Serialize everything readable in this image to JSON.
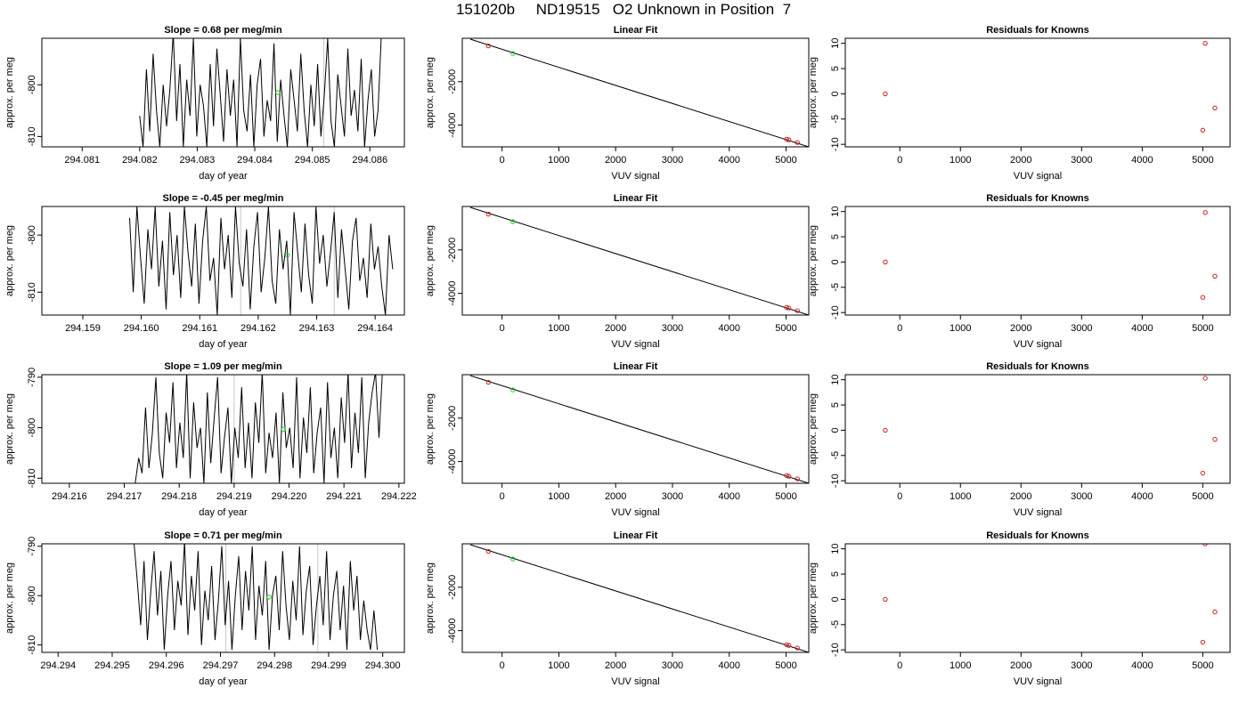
{
  "figure": {
    "title": "151020b     ND19515   O2 Unknown in Position  7"
  },
  "chart_data": [
    {
      "type": "line",
      "title": "Slope =  0.68  per meg/min",
      "xlabel": "day of year",
      "ylabel": "approx. per meg",
      "xlim": [
        294.0803,
        294.0866
      ],
      "ylim": [
        -812,
        -791
      ],
      "xticks": [
        294.081,
        294.082,
        294.083,
        294.084,
        294.085,
        294.086
      ],
      "xtick_labels": [
        "294.081",
        "294.082",
        "294.083",
        "294.084",
        "294.085",
        "294.086"
      ],
      "yticks": [
        -800,
        -810
      ],
      "ytick_labels": [
        "-800",
        "-810"
      ],
      "x_start": 294.082,
      "x_end": 294.0862,
      "vlines": [
        294.0852
      ],
      "mean_point": {
        "x": 294.0844,
        "y": -801.5
      },
      "series": [
        {
          "values": [
            -806,
            -812,
            -797,
            -809,
            -794,
            -805,
            -812,
            -800,
            -808,
            -801,
            -790,
            -807,
            -796,
            -812,
            -799,
            -806,
            -791,
            -810,
            -800,
            -804,
            -812,
            -796,
            -808,
            -793,
            -802,
            -811,
            -797,
            -806,
            -799,
            -812,
            -791,
            -805,
            -809,
            -798,
            -812,
            -800,
            -795,
            -810,
            -803,
            -807,
            -792,
            -811,
            -799,
            -806,
            -812,
            -797,
            -803,
            -809,
            -794,
            -805,
            -812,
            -800,
            -808,
            -796,
            -810,
            -802,
            -791,
            -807,
            -812,
            -798,
            -804,
            -810,
            -793,
            -806,
            -801,
            -809,
            -795,
            -812,
            -803,
            -797,
            -810,
            -805,
            -790
          ]
        }
      ]
    },
    {
      "type": "scatter",
      "title": "Linear Fit",
      "xlabel": "VUV signal",
      "ylabel": "approx. per meg",
      "xlim": [
        -700,
        5400
      ],
      "ylim": [
        -5000,
        0
      ],
      "xticks": [
        0,
        1000,
        2000,
        3000,
        4000,
        5000
      ],
      "xtick_labels": [
        "0",
        "1000",
        "2000",
        "3000",
        "4000",
        "5000"
      ],
      "yticks": [
        -2000,
        -4000
      ],
      "ytick_labels": [
        "-2000",
        "-4000"
      ],
      "fit_line": {
        "x": [
          -560,
          5400
        ],
        "y": [
          -40,
          -5000
        ]
      },
      "points_red": [
        {
          "x": -240,
          "y": -350
        },
        {
          "x": 5010,
          "y": -4650
        },
        {
          "x": 5050,
          "y": -4680
        },
        {
          "x": 5200,
          "y": -4800
        }
      ],
      "points_green": [
        {
          "x": 190,
          "y": -700
        }
      ]
    },
    {
      "type": "scatter",
      "title": "Residuals for Knowns",
      "xlabel": "VUV signal",
      "ylabel": "approx. per meg",
      "xlim": [
        -900,
        5450
      ],
      "ylim": [
        -10.5,
        11
      ],
      "xticks": [
        0,
        1000,
        2000,
        3000,
        4000,
        5000
      ],
      "xtick_labels": [
        "0",
        "1000",
        "2000",
        "3000",
        "4000",
        "5000"
      ],
      "yticks": [
        10,
        5,
        0,
        -5,
        -10
      ],
      "ytick_labels": [
        "10",
        "5",
        "0",
        "-5",
        "-10"
      ],
      "points_red": [
        {
          "x": -240,
          "y": 0
        },
        {
          "x": 5000,
          "y": -7.2
        },
        {
          "x": 5040,
          "y": 10
        },
        {
          "x": 5200,
          "y": -2.8
        }
      ]
    },
    {
      "type": "line",
      "title": "Slope =  -0.45  per meg/min",
      "xlabel": "day of year",
      "ylabel": "approx. per meg",
      "xlim": [
        294.1583,
        294.1645
      ],
      "ylim": [
        -814,
        -795
      ],
      "xticks": [
        294.159,
        294.16,
        294.161,
        294.162,
        294.163,
        294.164
      ],
      "xtick_labels": [
        "294.159",
        "294.160",
        "294.161",
        "294.162",
        "294.163",
        "294.164"
      ],
      "yticks": [
        -800,
        -810
      ],
      "ytick_labels": [
        "-800",
        "-810"
      ],
      "x_start": 294.1598,
      "x_end": 294.1643,
      "vlines": [
        294.1617,
        294.1633
      ],
      "mean_point": {
        "x": 294.1625,
        "y": -803.5
      },
      "series": [
        {
          "values": [
            -797,
            -810,
            -795,
            -804,
            -812,
            -799,
            -806,
            -795,
            -809,
            -801,
            -813,
            -796,
            -807,
            -800,
            -811,
            -795,
            -803,
            -809,
            -798,
            -812,
            -801,
            -795,
            -808,
            -804,
            -814,
            -797,
            -806,
            -800,
            -811,
            -795,
            -805,
            -809,
            -799,
            -813,
            -802,
            -796,
            -810,
            -804,
            -795,
            -808,
            -812,
            -799,
            -806,
            -801,
            -814,
            -796,
            -803,
            -810,
            -798,
            -807,
            -812,
            -795,
            -805,
            -800,
            -809,
            -803,
            -796,
            -811,
            -799,
            -806,
            -813,
            -801,
            -797,
            -808,
            -804,
            -811,
            -798,
            -806,
            -802,
            -809,
            -814,
            -800,
            -806
          ]
        }
      ]
    },
    {
      "type": "scatter",
      "title": "Linear Fit",
      "xlabel": "VUV signal",
      "ylabel": "approx. per meg",
      "xlim": [
        -700,
        5400
      ],
      "ylim": [
        -5000,
        0
      ],
      "xticks": [
        0,
        1000,
        2000,
        3000,
        4000,
        5000
      ],
      "xtick_labels": [
        "0",
        "1000",
        "2000",
        "3000",
        "4000",
        "5000"
      ],
      "yticks": [
        -2000,
        -4000
      ],
      "ytick_labels": [
        "-2000",
        "-4000"
      ],
      "fit_line": {
        "x": [
          -560,
          5400
        ],
        "y": [
          -40,
          -5000
        ]
      },
      "points_red": [
        {
          "x": -240,
          "y": -350
        },
        {
          "x": 5010,
          "y": -4650
        },
        {
          "x": 5050,
          "y": -4680
        },
        {
          "x": 5200,
          "y": -4800
        }
      ],
      "points_green": [
        {
          "x": 190,
          "y": -700
        }
      ]
    },
    {
      "type": "scatter",
      "title": "Residuals for Knowns",
      "xlabel": "VUV signal",
      "ylabel": "approx. per meg",
      "xlim": [
        -900,
        5450
      ],
      "ylim": [
        -10.5,
        11
      ],
      "xticks": [
        0,
        1000,
        2000,
        3000,
        4000,
        5000
      ],
      "xtick_labels": [
        "0",
        "1000",
        "2000",
        "3000",
        "4000",
        "5000"
      ],
      "yticks": [
        10,
        5,
        0,
        -5,
        -10
      ],
      "ytick_labels": [
        "10",
        "5",
        "0",
        "-5",
        "-10"
      ],
      "points_red": [
        {
          "x": -240,
          "y": 0
        },
        {
          "x": 5000,
          "y": -7
        },
        {
          "x": 5040,
          "y": 9.8
        },
        {
          "x": 5200,
          "y": -2.8
        }
      ]
    },
    {
      "type": "line",
      "title": "Slope =  1.09  per meg/min",
      "xlabel": "day of year",
      "ylabel": "approx. per meg",
      "xlim": [
        294.2155,
        294.2221
      ],
      "ylim": [
        -811,
        -789.5
      ],
      "xticks": [
        294.216,
        294.217,
        294.218,
        294.219,
        294.22,
        294.221,
        294.222
      ],
      "xtick_labels": [
        "294.216",
        "294.217",
        "294.218",
        "294.219",
        "294.220",
        "294.221",
        "294.222"
      ],
      "yticks": [
        -790,
        -800,
        -810
      ],
      "ytick_labels": [
        "-790",
        "-800",
        "-810"
      ],
      "x_start": 294.2172,
      "x_end": 294.2217,
      "vlines": [
        294.219
      ],
      "mean_point": {
        "x": 294.2199,
        "y": -800.3
      },
      "series": [
        {
          "values": [
            -811,
            -806,
            -809,
            -796,
            -808,
            -801,
            -790,
            -805,
            -810,
            -797,
            -803,
            -791,
            -808,
            -799,
            -806,
            -789,
            -810,
            -795,
            -804,
            -800,
            -811,
            -793,
            -807,
            -798,
            -790,
            -809,
            -802,
            -796,
            -811,
            -800,
            -806,
            -792,
            -808,
            -799,
            -810,
            -795,
            -803,
            -789,
            -809,
            -801,
            -806,
            -797,
            -811,
            -793,
            -804,
            -800,
            -808,
            -790,
            -810,
            -798,
            -805,
            -792,
            -809,
            -801,
            -796,
            -811,
            -791,
            -806,
            -800,
            -810,
            -794,
            -803,
            -789,
            -808,
            -797,
            -805,
            -790,
            -810,
            -799,
            -793,
            -789,
            -802,
            -789
          ]
        }
      ]
    },
    {
      "type": "scatter",
      "title": "Linear Fit",
      "xlabel": "VUV signal",
      "ylabel": "approx. per meg",
      "xlim": [
        -700,
        5400
      ],
      "ylim": [
        -5000,
        0
      ],
      "xticks": [
        0,
        1000,
        2000,
        3000,
        4000,
        5000
      ],
      "xtick_labels": [
        "0",
        "1000",
        "2000",
        "3000",
        "4000",
        "5000"
      ],
      "yticks": [
        -2000,
        -4000
      ],
      "ytick_labels": [
        "-2000",
        "-4000"
      ],
      "fit_line": {
        "x": [
          -560,
          5400
        ],
        "y": [
          -40,
          -5000
        ]
      },
      "points_red": [
        {
          "x": -240,
          "y": -350
        },
        {
          "x": 5010,
          "y": -4650
        },
        {
          "x": 5050,
          "y": -4680
        },
        {
          "x": 5200,
          "y": -4800
        }
      ],
      "points_green": [
        {
          "x": 190,
          "y": -700
        }
      ]
    },
    {
      "type": "scatter",
      "title": "Residuals for Knowns",
      "xlabel": "VUV signal",
      "ylabel": "approx. per meg",
      "xlim": [
        -900,
        5450
      ],
      "ylim": [
        -10.5,
        11
      ],
      "xticks": [
        0,
        1000,
        2000,
        3000,
        4000,
        5000
      ],
      "xtick_labels": [
        "0",
        "1000",
        "2000",
        "3000",
        "4000",
        "5000"
      ],
      "yticks": [
        10,
        5,
        0,
        -5,
        -10
      ],
      "ytick_labels": [
        "10",
        "5",
        "0",
        "-5",
        "-10"
      ],
      "points_red": [
        {
          "x": -240,
          "y": 0
        },
        {
          "x": 5000,
          "y": -8.5
        },
        {
          "x": 5040,
          "y": 10.3
        },
        {
          "x": 5200,
          "y": -1.8
        }
      ]
    },
    {
      "type": "line",
      "title": "Slope =  0.71  per meg/min",
      "xlabel": "day of year",
      "ylabel": "approx. per meg",
      "xlim": [
        294.2937,
        294.3004
      ],
      "ylim": [
        -811.5,
        -789.5
      ],
      "xticks": [
        294.294,
        294.295,
        294.296,
        294.297,
        294.298,
        294.299,
        294.3
      ],
      "xtick_labels": [
        "294.294",
        "294.295",
        "294.296",
        "294.297",
        "294.298",
        "294.299",
        "294.300"
      ],
      "yticks": [
        -790,
        -800,
        -810
      ],
      "ytick_labels": [
        "-790",
        "-800",
        "-810"
      ],
      "x_start": 294.2954,
      "x_end": 294.2999,
      "vlines": [
        294.2971,
        294.2988
      ],
      "mean_point": {
        "x": 294.2979,
        "y": -800.3
      },
      "series": [
        {
          "values": [
            -789,
            -797,
            -806,
            -793,
            -809,
            -799,
            -791,
            -804,
            -795,
            -811,
            -800,
            -793,
            -807,
            -797,
            -802,
            -789,
            -808,
            -796,
            -803,
            -791,
            -810,
            -799,
            -805,
            -794,
            -809,
            -801,
            -790,
            -806,
            -797,
            -811,
            -800,
            -792,
            -807,
            -795,
            -803,
            -790,
            -809,
            -798,
            -804,
            -793,
            -811,
            -800,
            -796,
            -807,
            -791,
            -802,
            -809,
            -797,
            -805,
            -790,
            -808,
            -799,
            -794,
            -810,
            -802,
            -796,
            -806,
            -791,
            -809,
            -800,
            -795,
            -807,
            -798,
            -811,
            -793,
            -803,
            -796,
            -809,
            -801,
            -807,
            -811,
            -803,
            -811
          ]
        }
      ]
    },
    {
      "type": "scatter",
      "title": "Linear Fit",
      "xlabel": "VUV signal",
      "ylabel": "approx. per meg",
      "xlim": [
        -700,
        5400
      ],
      "ylim": [
        -5000,
        0
      ],
      "xticks": [
        0,
        1000,
        2000,
        3000,
        4000,
        5000
      ],
      "xtick_labels": [
        "0",
        "1000",
        "2000",
        "3000",
        "4000",
        "5000"
      ],
      "yticks": [
        -2000,
        -4000
      ],
      "ytick_labels": [
        "-2000",
        "-4000"
      ],
      "fit_line": {
        "x": [
          -560,
          5400
        ],
        "y": [
          -40,
          -5000
        ]
      },
      "points_red": [
        {
          "x": -240,
          "y": -350
        },
        {
          "x": 5010,
          "y": -4650
        },
        {
          "x": 5050,
          "y": -4680
        },
        {
          "x": 5200,
          "y": -4800
        }
      ],
      "points_green": [
        {
          "x": 190,
          "y": -700
        }
      ]
    },
    {
      "type": "scatter",
      "title": "Residuals for Knowns",
      "xlabel": "VUV signal",
      "ylabel": "approx. per meg",
      "xlim": [
        -900,
        5450
      ],
      "ylim": [
        -10.5,
        11
      ],
      "xticks": [
        0,
        1000,
        2000,
        3000,
        4000,
        5000
      ],
      "xtick_labels": [
        "0",
        "1000",
        "2000",
        "3000",
        "4000",
        "5000"
      ],
      "yticks": [
        10,
        5,
        0,
        -5,
        -10
      ],
      "ytick_labels": [
        "10",
        "5",
        "0",
        "-5",
        "-10"
      ],
      "points_red": [
        {
          "x": -240,
          "y": 0
        },
        {
          "x": 5000,
          "y": -8.5
        },
        {
          "x": 5040,
          "y": 11
        },
        {
          "x": 5200,
          "y": -2.5
        }
      ]
    }
  ]
}
